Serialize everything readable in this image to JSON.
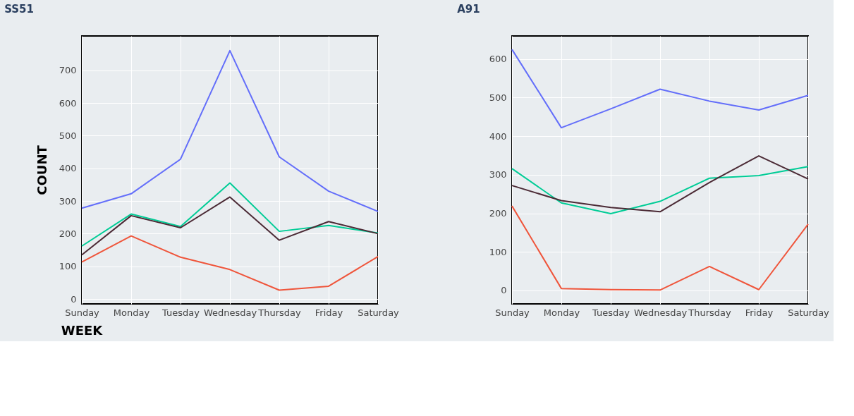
{
  "chart_data": [
    {
      "type": "line",
      "title": "SS51",
      "ylabel": "COUNT",
      "xlabel": "WEEK",
      "categories": [
        "Sunday",
        "Monday",
        "Tuesday",
        "Wednesday",
        "Thursday",
        "Friday",
        "Saturday"
      ],
      "series": [
        {
          "color": "#636efa",
          "values": [
            278,
            322,
            428,
            760,
            435,
            330,
            268
          ]
        },
        {
          "color": "#00cc96",
          "values": [
            162,
            260,
            222,
            355,
            207,
            225,
            202
          ]
        },
        {
          "color": "#4b2a35",
          "values": [
            135,
            255,
            218,
            312,
            180,
            237,
            200
          ]
        },
        {
          "color": "#ef553b",
          "values": [
            113,
            193,
            128,
            90,
            27,
            39,
            130
          ]
        }
      ],
      "ylim": [
        -15,
        805
      ],
      "yticks": [
        0,
        100,
        200,
        300,
        400,
        500,
        600,
        700
      ],
      "grid": true,
      "marker": "none",
      "line_style": "solid"
    },
    {
      "type": "line",
      "title": "A91",
      "categories": [
        "Sunday",
        "Monday",
        "Tuesday",
        "Wednesday",
        "Thursday",
        "Friday",
        "Saturday"
      ],
      "series": [
        {
          "color": "#636efa",
          "values": [
            625,
            422,
            471,
            522,
            491,
            468,
            506
          ]
        },
        {
          "color": "#00cc96",
          "values": [
            316,
            227,
            199,
            231,
            291,
            298,
            321
          ]
        },
        {
          "color": "#4b2a35",
          "values": [
            272,
            233,
            215,
            204,
            280,
            349,
            289
          ]
        },
        {
          "color": "#ef553b",
          "values": [
            219,
            5,
            2,
            1,
            62,
            2,
            172
          ]
        }
      ],
      "ylim": [
        -35,
        660
      ],
      "yticks": [
        0,
        100,
        200,
        300,
        400,
        500,
        600
      ],
      "grid": true,
      "marker": "none",
      "line_style": "solid"
    }
  ]
}
